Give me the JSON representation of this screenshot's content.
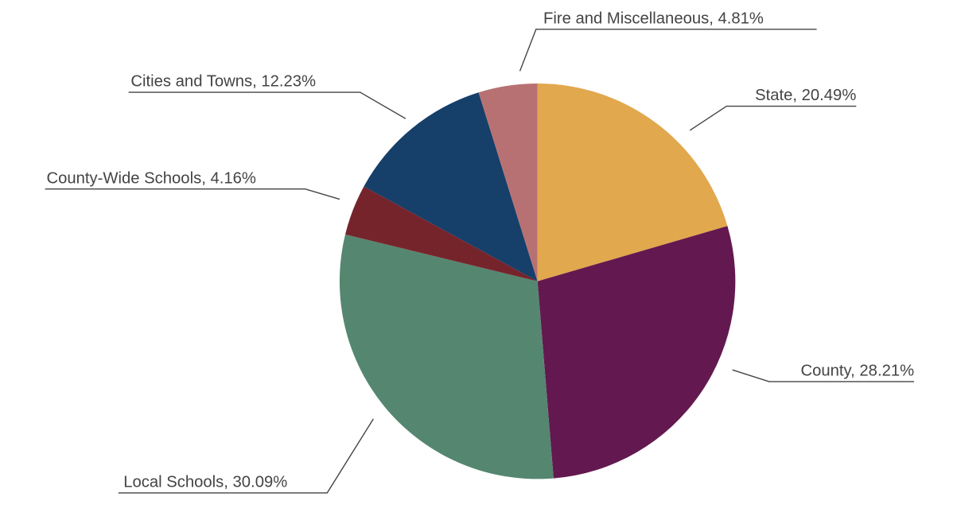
{
  "chart_data": {
    "type": "pie",
    "values": [
      20.49,
      28.21,
      30.09,
      4.16,
      12.23,
      4.81
    ],
    "value_labels": [
      "State, 20.49%",
      "County, 28.21%",
      "Local Schools, 30.09%",
      "County-Wide Schools, 4.16%",
      "Cities and Towns, 12.23%",
      "Fire and Miscellaneous, 4.81%"
    ],
    "colors": [
      "#e2a84e",
      "#63194f",
      "#558670",
      "#76242c",
      "#163f6a",
      "#b87173"
    ]
  }
}
